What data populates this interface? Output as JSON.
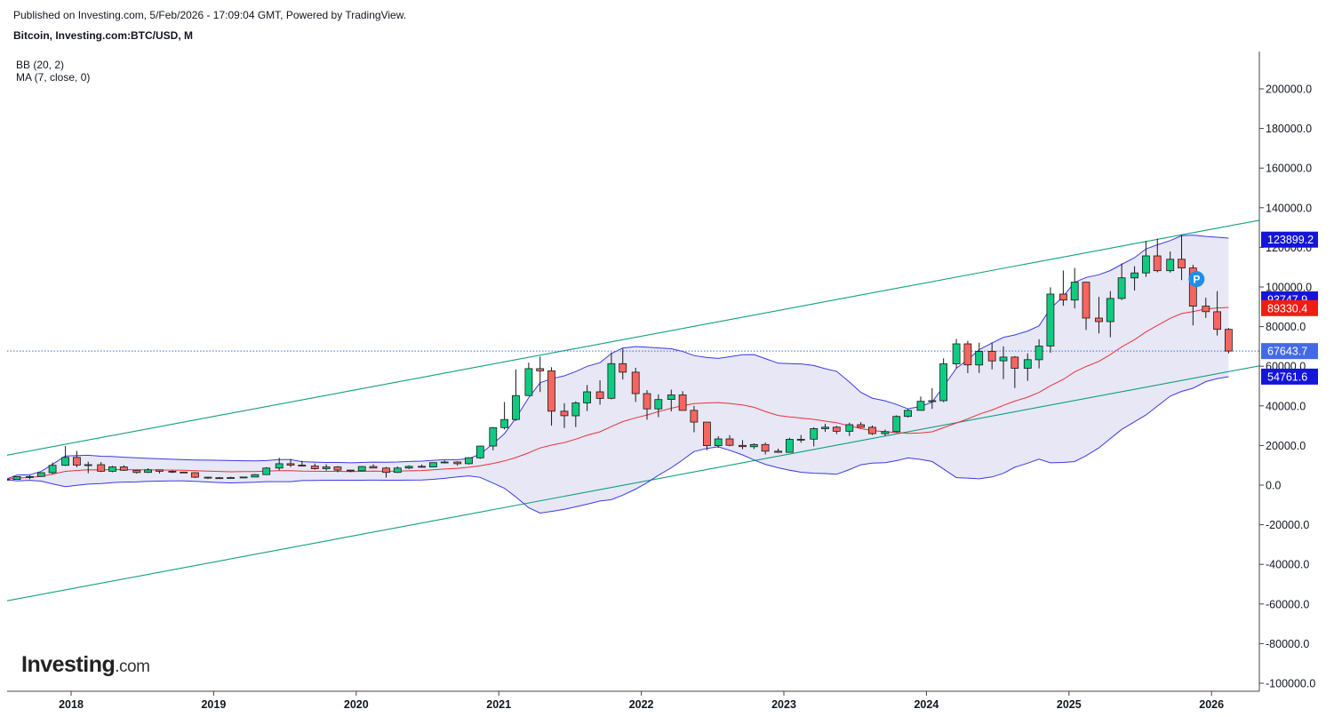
{
  "header": {
    "published": "Published on Investing.com, 5/Feb/2026 - 17:09:04 GMT, Powered by TradingView.",
    "symbol": "Bitcoin, Investing.com:BTC/USD, M"
  },
  "indicators": {
    "bb": "BB (20, 2)",
    "ma": "MA (7, close, 0)"
  },
  "logo": {
    "main": "Investing",
    "suffix": ".com"
  },
  "colors": {
    "up": "#0ecb81",
    "down": "#f6655f",
    "band_line": "#3a3ce0",
    "band_fill": "#e3e3f3",
    "ma_line": "#e8323a",
    "trend_line": "#109e80",
    "price_line": "#4469e8"
  },
  "chart_data": {
    "type": "candlestick",
    "interval": "monthly",
    "x_tick_labels": [
      "2018",
      "2019",
      "2020",
      "2021",
      "2022",
      "2023",
      "2024",
      "2025",
      "2026"
    ],
    "y_tick_labels": [
      "200000.0",
      "180000.0",
      "160000.0",
      "140000.0",
      "120000.0",
      "100000.0",
      "80000.0",
      "60000.0",
      "40000.0",
      "20000.0",
      "0.0",
      "-20000.0",
      "-40000.0",
      "-60000.0",
      "-80000.0",
      "-100000.0"
    ],
    "ylim": [
      -104000,
      218000
    ],
    "candles": [
      [
        2017.54,
        2900,
        3200,
        2200,
        2850
      ],
      [
        2017.62,
        2850,
        4400,
        2800,
        4300
      ],
      [
        2017.71,
        4300,
        5000,
        3000,
        4350
      ],
      [
        2017.79,
        4350,
        6400,
        4200,
        6300
      ],
      [
        2017.87,
        6300,
        11400,
        5500,
        10000
      ],
      [
        2017.96,
        10000,
        19700,
        9600,
        14000
      ],
      [
        2018.04,
        14000,
        17200,
        9000,
        10100
      ],
      [
        2018.12,
        10100,
        11800,
        6000,
        10300
      ],
      [
        2018.21,
        10300,
        11600,
        6600,
        7000
      ],
      [
        2018.29,
        7000,
        9700,
        6500,
        9200
      ],
      [
        2018.37,
        9200,
        10000,
        7200,
        7500
      ],
      [
        2018.46,
        7500,
        7800,
        5800,
        6400
      ],
      [
        2018.54,
        6400,
        8500,
        6100,
        7700
      ],
      [
        2018.62,
        7700,
        7800,
        5900,
        7000
      ],
      [
        2018.71,
        7000,
        7400,
        6100,
        6600
      ],
      [
        2018.79,
        6600,
        6800,
        6100,
        6300
      ],
      [
        2018.87,
        6300,
        6500,
        3600,
        4000
      ],
      [
        2018.96,
        4000,
        4200,
        3100,
        3700
      ],
      [
        2019.04,
        3700,
        4100,
        3350,
        3450
      ],
      [
        2019.12,
        3450,
        4200,
        3380,
        3800
      ],
      [
        2019.21,
        3800,
        4150,
        3650,
        4100
      ],
      [
        2019.29,
        4100,
        5600,
        4050,
        5300
      ],
      [
        2019.37,
        5300,
        9100,
        5300,
        8600
      ],
      [
        2019.46,
        8600,
        13800,
        7500,
        10800
      ],
      [
        2019.54,
        10800,
        13200,
        9100,
        10100
      ],
      [
        2019.62,
        10100,
        12300,
        9400,
        9600
      ],
      [
        2019.71,
        9600,
        10900,
        7800,
        8300
      ],
      [
        2019.79,
        8300,
        10500,
        7300,
        9200
      ],
      [
        2019.87,
        9200,
        9600,
        6500,
        7600
      ],
      [
        2019.96,
        7600,
        7700,
        6500,
        7200
      ],
      [
        2020.04,
        7200,
        9600,
        6900,
        9350
      ],
      [
        2020.12,
        9350,
        10500,
        8500,
        8600
      ],
      [
        2020.21,
        8600,
        9200,
        3800,
        6400
      ],
      [
        2020.29,
        6400,
        9400,
        6150,
        8600
      ],
      [
        2020.37,
        8600,
        10000,
        8100,
        9450
      ],
      [
        2020.46,
        9450,
        10400,
        8900,
        9150
      ],
      [
        2020.54,
        9150,
        11450,
        8950,
        11350
      ],
      [
        2020.62,
        11350,
        12450,
        11000,
        11650
      ],
      [
        2020.71,
        11650,
        12050,
        9800,
        10780
      ],
      [
        2020.79,
        10780,
        14100,
        10400,
        13800
      ],
      [
        2020.87,
        13800,
        19900,
        13300,
        19700
      ],
      [
        2020.96,
        19700,
        29300,
        17600,
        29000
      ],
      [
        2021.04,
        29000,
        41900,
        28100,
        33100
      ],
      [
        2021.12,
        33100,
        58400,
        32400,
        45200
      ],
      [
        2021.21,
        45200,
        61800,
        45000,
        58800
      ],
      [
        2021.29,
        58800,
        64900,
        47000,
        57700
      ],
      [
        2021.37,
        57700,
        59500,
        30000,
        37300
      ],
      [
        2021.46,
        37300,
        41300,
        28800,
        35000
      ],
      [
        2021.54,
        35000,
        42300,
        29300,
        41500
      ],
      [
        2021.62,
        41500,
        50500,
        37400,
        47100
      ],
      [
        2021.71,
        47100,
        52900,
        40600,
        43800
      ],
      [
        2021.79,
        43800,
        67000,
        43300,
        61300
      ],
      [
        2021.87,
        61300,
        69000,
        53300,
        57000
      ],
      [
        2021.96,
        57000,
        59200,
        42000,
        46200
      ],
      [
        2022.04,
        46200,
        47900,
        33000,
        38500
      ],
      [
        2022.12,
        38500,
        45800,
        34300,
        43200
      ],
      [
        2022.21,
        43200,
        48200,
        37200,
        45500
      ],
      [
        2022.29,
        45500,
        47400,
        37700,
        37700
      ],
      [
        2022.37,
        37700,
        40000,
        26700,
        31800
      ],
      [
        2022.46,
        31800,
        31900,
        17600,
        19900
      ],
      [
        2022.54,
        19900,
        24700,
        18800,
        23300
      ],
      [
        2022.62,
        23300,
        25200,
        19600,
        20050
      ],
      [
        2022.71,
        20050,
        22700,
        18150,
        19400
      ],
      [
        2022.79,
        19400,
        21100,
        18200,
        20500
      ],
      [
        2022.87,
        20500,
        21500,
        15500,
        17150
      ],
      [
        2022.96,
        17150,
        18400,
        16300,
        16550
      ],
      [
        2023.04,
        16550,
        23900,
        16500,
        23100
      ],
      [
        2023.12,
        23100,
        25300,
        21400,
        23150
      ],
      [
        2023.21,
        23150,
        29200,
        19500,
        28500
      ],
      [
        2023.29,
        28500,
        31000,
        26900,
        29250
      ],
      [
        2023.37,
        29250,
        29900,
        25800,
        27200
      ],
      [
        2023.46,
        27200,
        31500,
        24800,
        30500
      ],
      [
        2023.54,
        30500,
        31800,
        28900,
        29200
      ],
      [
        2023.62,
        29200,
        30100,
        25300,
        25950
      ],
      [
        2023.71,
        25950,
        28000,
        24900,
        27000
      ],
      [
        2023.79,
        27000,
        35200,
        26500,
        34650
      ],
      [
        2023.87,
        34650,
        38400,
        34100,
        37700
      ],
      [
        2023.96,
        37700,
        44700,
        37600,
        42280
      ],
      [
        2024.04,
        42280,
        48900,
        38500,
        42580
      ],
      [
        2024.12,
        42580,
        64000,
        41900,
        61200
      ],
      [
        2024.21,
        61200,
        73800,
        59000,
        71300
      ],
      [
        2024.29,
        71300,
        72800,
        56500,
        60650
      ],
      [
        2024.37,
        60650,
        71900,
        56600,
        67500
      ],
      [
        2024.46,
        67500,
        72000,
        58400,
        62700
      ],
      [
        2024.54,
        62700,
        70000,
        53500,
        64600
      ],
      [
        2024.62,
        64600,
        65100,
        49000,
        58950
      ],
      [
        2024.71,
        58950,
        66500,
        52600,
        63300
      ],
      [
        2024.79,
        63300,
        73600,
        58900,
        70200
      ],
      [
        2024.87,
        70200,
        99800,
        66800,
        96400
      ],
      [
        2024.96,
        96400,
        108300,
        90500,
        93400
      ],
      [
        2025.04,
        93400,
        109600,
        89200,
        102400
      ],
      [
        2025.12,
        102400,
        102500,
        78300,
        84300
      ],
      [
        2025.21,
        84300,
        95000,
        76600,
        82500
      ],
      [
        2025.29,
        82500,
        97900,
        74600,
        94200
      ],
      [
        2025.37,
        94200,
        111900,
        93400,
        104600
      ],
      [
        2025.46,
        104600,
        110500,
        98200,
        107100
      ],
      [
        2025.54,
        107100,
        123200,
        105100,
        115700
      ],
      [
        2025.62,
        115700,
        124400,
        107400,
        108200
      ],
      [
        2025.71,
        108200,
        117900,
        107300,
        114000
      ],
      [
        2025.79,
        114000,
        126200,
        103500,
        109600
      ],
      [
        2025.87,
        109600,
        111200,
        80600,
        90300
      ],
      [
        2025.96,
        90300,
        94600,
        84400,
        87500
      ],
      [
        2026.04,
        87500,
        97900,
        75500,
        78600
      ],
      [
        2026.12,
        78600,
        79300,
        66500,
        67643.7
      ]
    ],
    "price_labels": [
      {
        "text": "123899.2",
        "value": 123899.2,
        "color": "#1515d8"
      },
      {
        "text": "93747.9",
        "value": 93747.9,
        "color": "#1515d8"
      },
      {
        "text": "89330.4",
        "value": 89330.4,
        "color": "#ef1e14"
      },
      {
        "text": "67643.7",
        "value": 67643.7,
        "color": "#4469e8"
      },
      {
        "text": "54761.6",
        "value": 54761.6,
        "color": "#1515d8"
      }
    ],
    "last_price": 67643.7,
    "pivot_marker": {
      "text": "P",
      "t": 2025.87,
      "value": 104000
    },
    "trend_lines": [
      {
        "t1": 2017.47,
        "v1": 14000,
        "t2": 2026.47,
        "v2": 135500
      },
      {
        "t1": 2017.47,
        "v1": -59500,
        "t2": 2026.47,
        "v2": 62000
      }
    ]
  }
}
